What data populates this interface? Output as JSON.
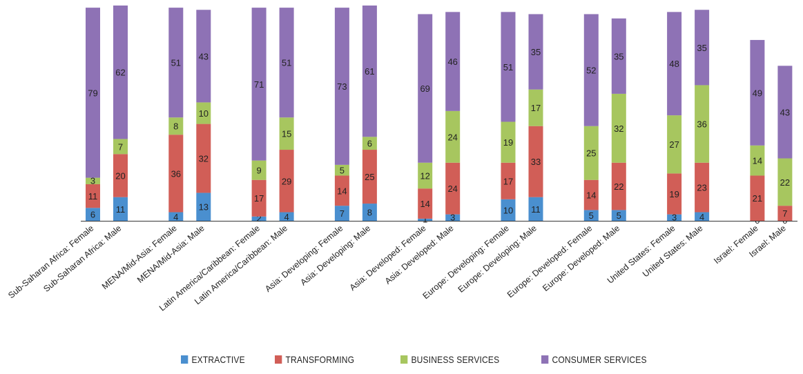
{
  "chart_data": {
    "type": "bar",
    "stacked": true,
    "categories": [
      "Sub-Saharan Africa: Female",
      "Sub-Saharan Africa: Male",
      "MENA/Mid-Asia: Female",
      "MENA/Mid-Asia: Male",
      "Latin America/Caribbean: Female",
      "Latin America/Caribbean: Male",
      "Asia: Developing: Female",
      "Asia: Developing: Male",
      "Asia: Developed: Female",
      "Asia: Developed: Male",
      "Europe: Developing: Female",
      "Europe: Developing: Male",
      "Europe: Developed: Female",
      "Europe: Developed: Male",
      "United States: Female",
      "United States: Male",
      "Israel: Female",
      "Israel: Male"
    ],
    "series": [
      {
        "name": "EXTRACTIVE",
        "color": "#4a8fcf",
        "values": [
          6,
          11,
          4,
          13,
          2,
          4,
          7,
          8,
          1,
          3,
          10,
          11,
          5,
          5,
          3,
          4,
          0,
          0
        ]
      },
      {
        "name": "TRANSFORMING",
        "color": "#d15e57",
        "values": [
          11,
          20,
          36,
          32,
          17,
          29,
          14,
          25,
          14,
          24,
          17,
          33,
          14,
          22,
          19,
          23,
          21,
          7
        ]
      },
      {
        "name": "BUSINESS SERVICES",
        "color": "#a7c65f",
        "values": [
          3,
          7,
          8,
          10,
          9,
          15,
          5,
          6,
          12,
          24,
          19,
          17,
          25,
          32,
          27,
          36,
          14,
          22
        ]
      },
      {
        "name": "CONSUMER SERVICES",
        "color": "#8e72b5",
        "values": [
          79,
          62,
          51,
          43,
          71,
          51,
          73,
          61,
          69,
          46,
          51,
          35,
          52,
          35,
          48,
          35,
          49,
          43
        ]
      }
    ],
    "ylim": [
      0,
      100
    ],
    "grid": false,
    "legend_position": "bottom"
  }
}
